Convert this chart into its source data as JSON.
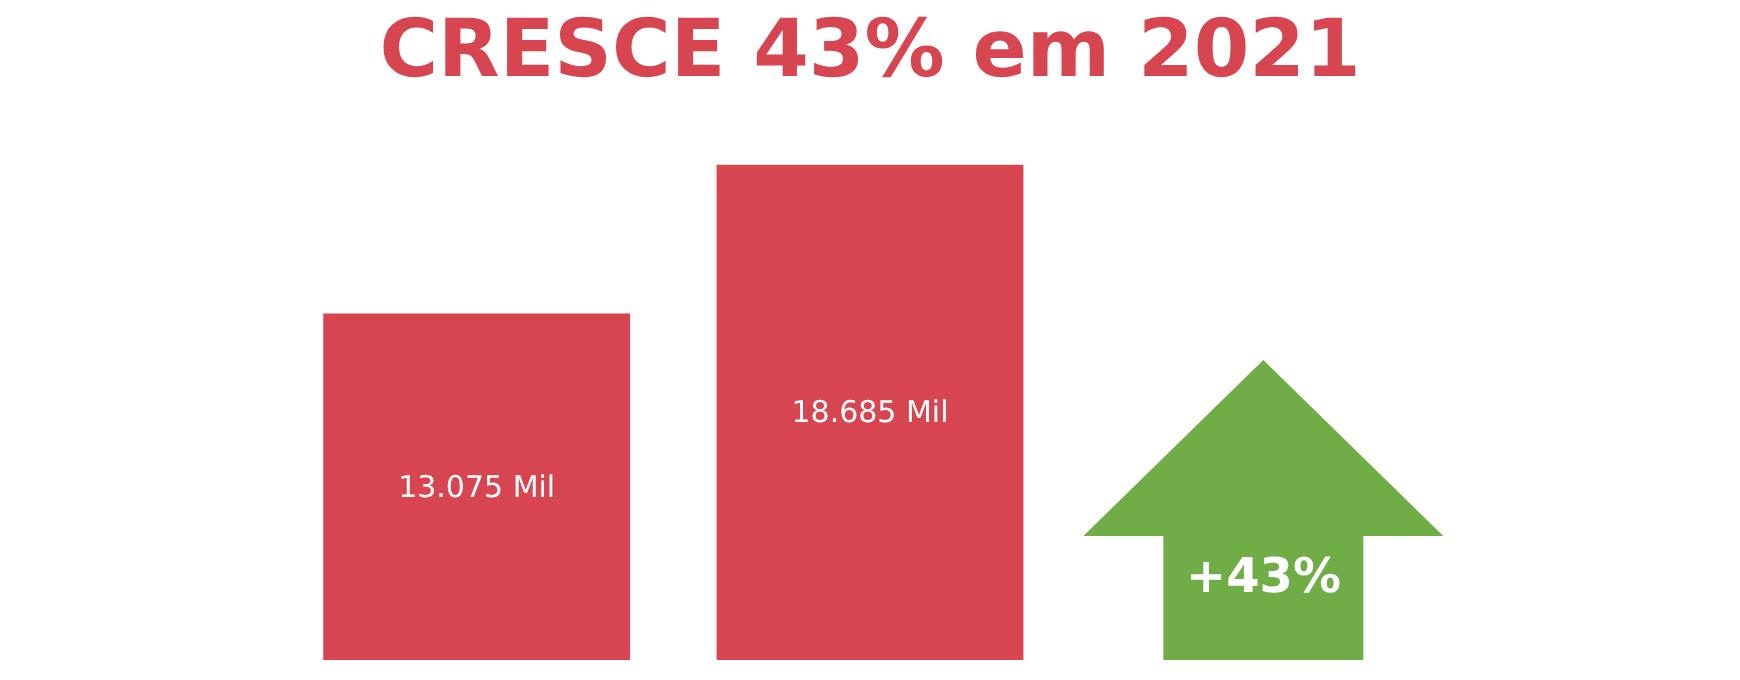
{
  "chart_data": {
    "type": "bar",
    "title": "CRESCE 43% em 2021",
    "categories": [
      null,
      null
    ],
    "values": [
      13075,
      18685
    ],
    "value_labels": [
      "13.075 Mil",
      "18.685 Mil"
    ],
    "color": "#d64550",
    "annotations": [
      "+43%"
    ]
  }
}
